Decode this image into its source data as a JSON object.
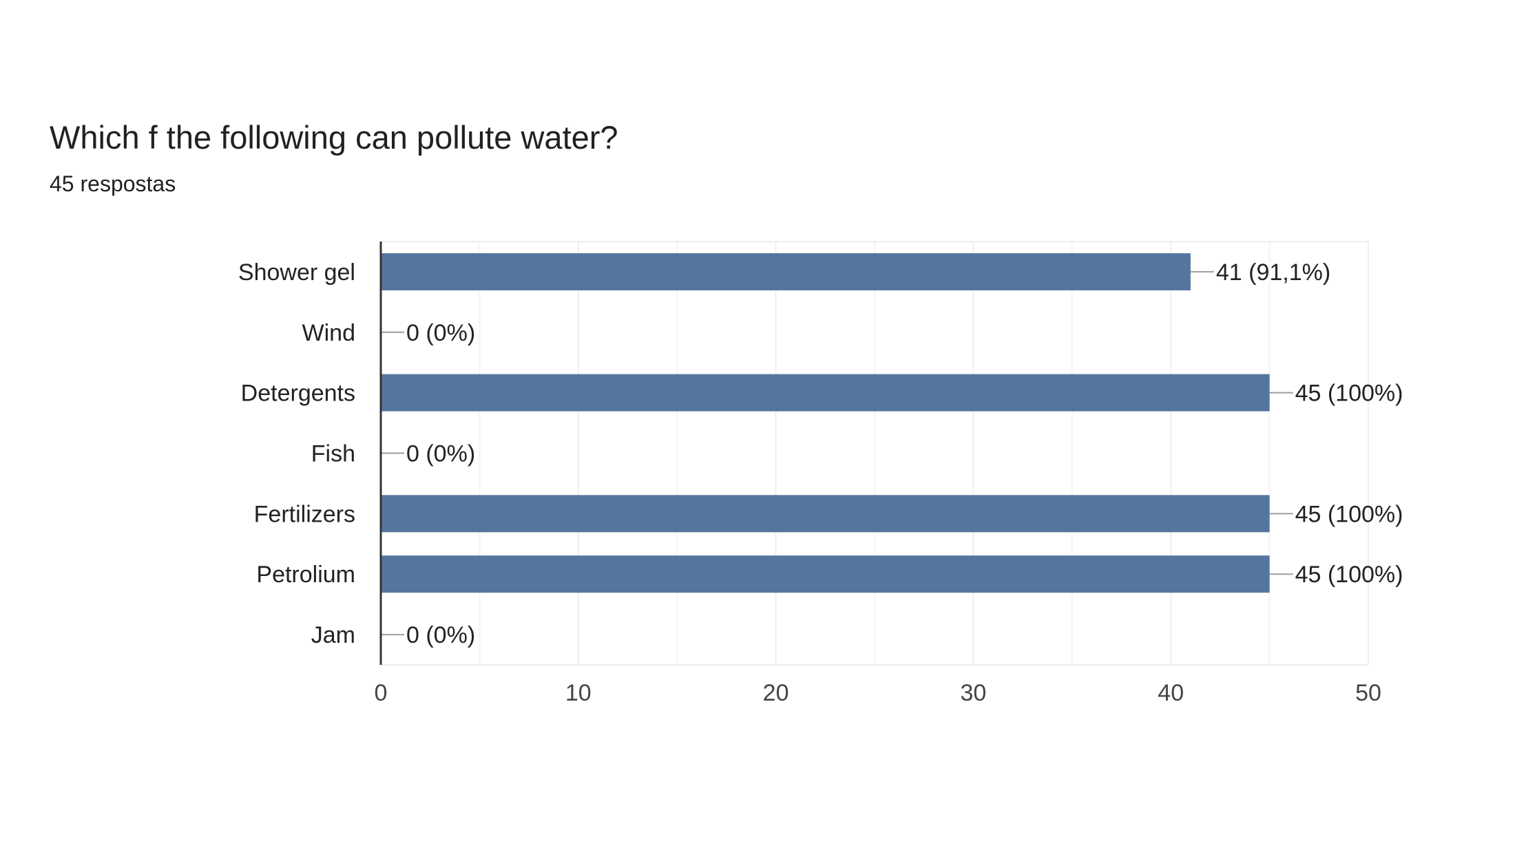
{
  "header": {
    "title": "Which f the following can pollute water?",
    "subtitle": "45 respostas"
  },
  "colors": {
    "bar": "#54769e",
    "gridline": "#eeeeee",
    "axis": "#333333",
    "leader": "#9e9e9e"
  },
  "chart_data": {
    "type": "bar",
    "orientation": "horizontal",
    "title": "Which f the following can pollute water?",
    "subtitle": "45 respostas",
    "categories": [
      "Shower gel",
      "Wind",
      "Detergents",
      "Fish",
      "Fertilizers",
      "Petrolium",
      "Jam"
    ],
    "values": [
      41,
      0,
      45,
      0,
      45,
      45,
      0
    ],
    "data_labels": [
      "41 (91,1%)",
      "0 (0%)",
      "45 (100%)",
      "0 (0%)",
      "45 (100%)",
      "45 (100%)",
      "0 (0%)"
    ],
    "xlim": [
      0,
      50
    ],
    "xticks": [
      0,
      10,
      20,
      30,
      40,
      50
    ],
    "xtick_labels": [
      "0",
      "10",
      "20",
      "30",
      "40",
      "50"
    ],
    "grid": true,
    "legend": "none"
  }
}
